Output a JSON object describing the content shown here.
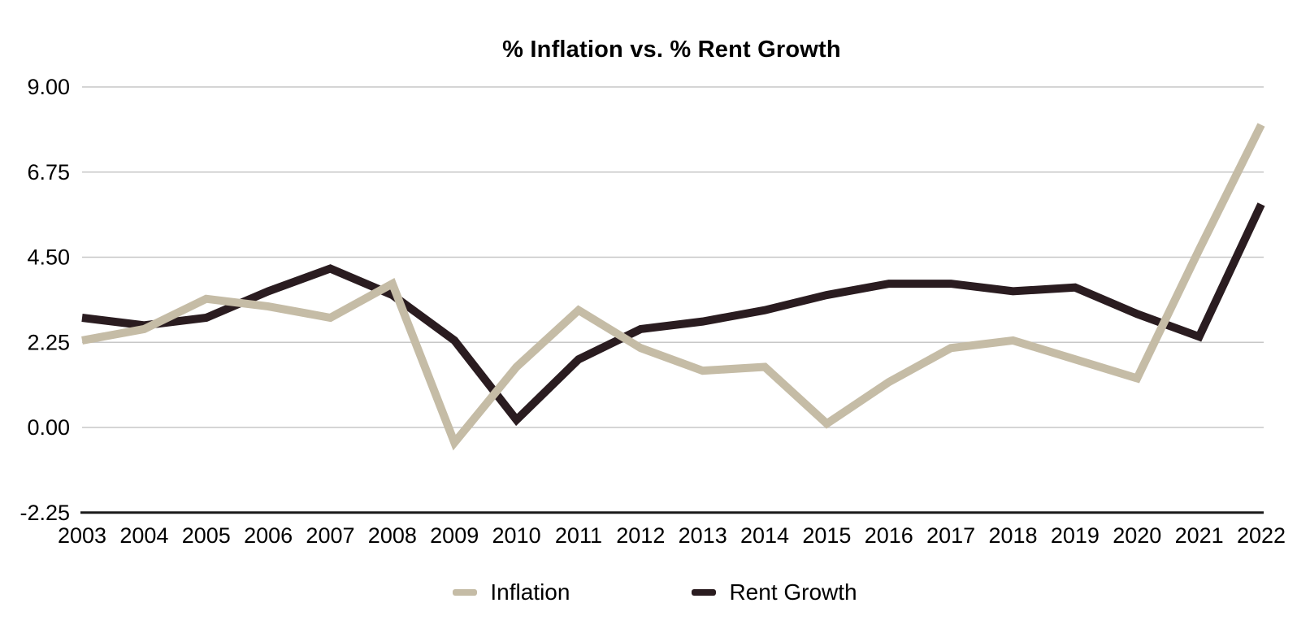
{
  "chart_data": {
    "type": "line",
    "title": "% Inflation vs. % Rent Growth",
    "categories": [
      "2003",
      "2004",
      "2005",
      "2006",
      "2007",
      "2008",
      "2009",
      "2010",
      "2011",
      "2012",
      "2013",
      "2014",
      "2015",
      "2016",
      "2017",
      "2018",
      "2019",
      "2020",
      "2021",
      "2022"
    ],
    "series": [
      {
        "name": "Inflation",
        "color": "#c5bca6",
        "values": [
          2.3,
          2.6,
          3.4,
          3.2,
          2.9,
          3.8,
          -0.4,
          1.6,
          3.1,
          2.1,
          1.5,
          1.6,
          0.1,
          1.2,
          2.1,
          2.3,
          1.8,
          1.3,
          4.7,
          8.0
        ]
      },
      {
        "name": "Rent Growth",
        "color": "#2a1c20",
        "values": [
          2.9,
          2.7,
          2.9,
          3.6,
          4.2,
          3.5,
          2.3,
          0.2,
          1.8,
          2.6,
          2.8,
          3.1,
          3.5,
          3.8,
          3.8,
          3.6,
          3.7,
          3.0,
          2.4,
          5.9
        ]
      }
    ],
    "xlabel": "",
    "ylabel": "",
    "ylim": [
      -2.25,
      9.0
    ],
    "yticks": [
      9.0,
      6.75,
      4.5,
      2.25,
      0.0,
      -2.25
    ],
    "ytick_labels": [
      "9.00",
      "6.75",
      "4.50",
      "2.25",
      "0.00",
      "-2.25"
    ],
    "grid": "horizontal",
    "legend_position": "bottom",
    "gridline_color": "#c7c7c7",
    "axis_line_color": "#1a1a1a",
    "background_color": "#ffffff"
  }
}
